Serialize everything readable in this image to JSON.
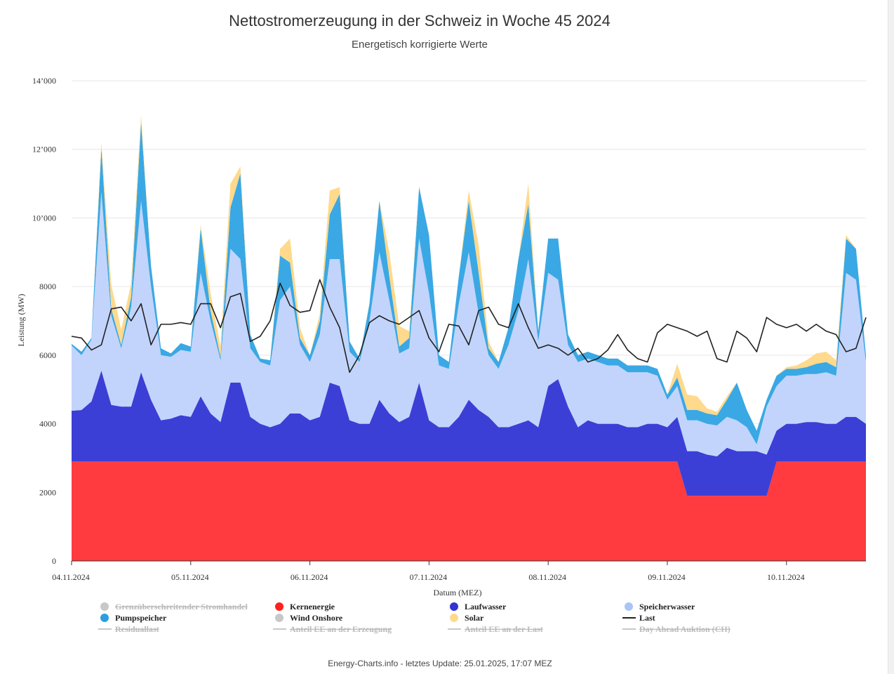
{
  "title": "Nettostromerzeugung in der Schweiz in Woche 45 2024",
  "subtitle": "Energetisch korrigierte Werte",
  "credits": "Energy-Charts.info - letztes Update: 25.01.2025, 17:07 MEZ",
  "chart_data": {
    "type": "area",
    "title": "Nettostromerzeugung in der Schweiz in Woche 45 2024",
    "subtitle": "Energetisch korrigierte Werte",
    "xlabel": "Datum (MEZ)",
    "ylabel": "Leistung (MW)",
    "ylim": [
      0,
      14000
    ],
    "yticks": [
      0,
      2000,
      4000,
      6000,
      8000,
      10000,
      12000,
      14000
    ],
    "ytick_labels": [
      "0",
      "2000",
      "4000",
      "6000",
      "8000",
      "10’000",
      "12’000",
      "14’000"
    ],
    "xlim_hours": [
      0,
      160
    ],
    "x_ticks": [
      {
        "hour": 0,
        "label": "04.11.2024"
      },
      {
        "hour": 24,
        "label": "05.11.2024"
      },
      {
        "hour": 48,
        "label": "06.11.2024"
      },
      {
        "hour": 72,
        "label": "07.11.2024"
      },
      {
        "hour": 96,
        "label": "08.11.2024"
      },
      {
        "hour": 120,
        "label": "09.11.2024"
      },
      {
        "hour": 144,
        "label": "10.11.2024"
      }
    ],
    "grid": true,
    "legend_position": "bottom",
    "x_hours": [
      0,
      2,
      4,
      6,
      8,
      10,
      12,
      14,
      16,
      18,
      20,
      22,
      24,
      26,
      28,
      30,
      32,
      34,
      36,
      38,
      40,
      42,
      44,
      46,
      48,
      50,
      52,
      54,
      56,
      58,
      60,
      62,
      64,
      66,
      68,
      70,
      72,
      74,
      76,
      78,
      80,
      82,
      84,
      86,
      88,
      90,
      92,
      94,
      96,
      98,
      100,
      102,
      104,
      106,
      108,
      110,
      112,
      114,
      116,
      118,
      120,
      122,
      124,
      126,
      128,
      130,
      132,
      134,
      136,
      138,
      140,
      142,
      144,
      146,
      148,
      150,
      152,
      154,
      156,
      158,
      160
    ],
    "series": [
      {
        "name": "Kernenergie",
        "color": "#ff3b3f",
        "stacked": true,
        "values": [
          2900,
          2900,
          2900,
          2900,
          2900,
          2900,
          2900,
          2900,
          2900,
          2900,
          2900,
          2900,
          2900,
          2900,
          2900,
          2900,
          2900,
          2900,
          2900,
          2900,
          2900,
          2900,
          2900,
          2900,
          2900,
          2900,
          2900,
          2900,
          2900,
          2900,
          2900,
          2900,
          2900,
          2900,
          2900,
          2900,
          2900,
          2900,
          2900,
          2900,
          2900,
          2900,
          2900,
          2900,
          2900,
          2900,
          2900,
          2900,
          2900,
          2900,
          2900,
          2900,
          2900,
          2900,
          2900,
          2900,
          2900,
          2900,
          2900,
          2900,
          2900,
          2900,
          1900,
          1900,
          1900,
          1900,
          1900,
          1900,
          1900,
          1900,
          1900,
          2900,
          2900,
          2900,
          2900,
          2900,
          2900,
          2900,
          2900,
          2900,
          2900
        ]
      },
      {
        "name": "Laufwasser",
        "color": "#3b3fd6",
        "stacked": true,
        "values": [
          1480,
          1500,
          1750,
          2650,
          1650,
          1600,
          1600,
          2600,
          1800,
          1200,
          1250,
          1350,
          1300,
          1900,
          1400,
          1150,
          2300,
          2300,
          1300,
          1100,
          1000,
          1100,
          1400,
          1400,
          1200,
          1300,
          2300,
          2200,
          1200,
          1100,
          1100,
          1800,
          1400,
          1150,
          1300,
          2300,
          1200,
          1000,
          1000,
          1300,
          1800,
          1500,
          1300,
          1000,
          1000,
          1100,
          1200,
          1000,
          2200,
          2400,
          1600,
          1000,
          1200,
          1100,
          1100,
          1100,
          1000,
          1000,
          1100,
          1100,
          1000,
          1300,
          1300,
          1300,
          1200,
          1150,
          1400,
          1300,
          1300,
          1300,
          1200,
          900,
          1100,
          1100,
          1150,
          1150,
          1100,
          1100,
          1300,
          1300,
          1100
        ]
      },
      {
        "name": "Speicherwasser",
        "color": "#c2d4fb",
        "stacked": true,
        "values": [
          1900,
          1600,
          1800,
          5200,
          2600,
          1700,
          2900,
          5000,
          3300,
          1900,
          1800,
          1900,
          1900,
          3600,
          2700,
          1800,
          3900,
          3600,
          2000,
          1800,
          1800,
          3600,
          3700,
          2000,
          1700,
          2400,
          3600,
          3700,
          2000,
          1800,
          3000,
          4300,
          3300,
          2000,
          2000,
          4200,
          3700,
          1800,
          1700,
          3300,
          4300,
          2800,
          1800,
          1700,
          2400,
          3300,
          4700,
          2500,
          3300,
          2900,
          1800,
          1900,
          1800,
          1800,
          1700,
          1700,
          1600,
          1600,
          1500,
          1400,
          800,
          900,
          900,
          900,
          900,
          900,
          900,
          900,
          700,
          200,
          1400,
          1300,
          1400,
          1400,
          1400,
          1400,
          1500,
          1400,
          4200,
          4000,
          1800
        ]
      },
      {
        "name": "Pumpspeicher",
        "color": "#3aa8e4",
        "stacked": true,
        "values": [
          50,
          100,
          50,
          1300,
          200,
          100,
          300,
          2300,
          600,
          200,
          100,
          200,
          150,
          1300,
          300,
          100,
          1200,
          2500,
          400,
          100,
          150,
          1300,
          700,
          200,
          200,
          400,
          1300,
          1900,
          300,
          100,
          500,
          1500,
          700,
          200,
          300,
          1500,
          1700,
          300,
          200,
          800,
          1500,
          1200,
          200,
          200,
          500,
          1500,
          1600,
          300,
          1000,
          1200,
          300,
          200,
          200,
          200,
          200,
          200,
          200,
          200,
          200,
          200,
          150,
          250,
          300,
          300,
          300,
          300,
          500,
          1100,
          500,
          400,
          200,
          300,
          200,
          200,
          200,
          300,
          300,
          250,
          1000,
          900,
          200
        ]
      },
      {
        "name": "Solar",
        "color": "#ffd98c",
        "stacked": true,
        "values": [
          0,
          0,
          0,
          150,
          700,
          450,
          400,
          200,
          0,
          0,
          0,
          0,
          0,
          100,
          500,
          300,
          700,
          200,
          0,
          0,
          0,
          200,
          700,
          300,
          0,
          200,
          700,
          200,
          0,
          0,
          0,
          0,
          700,
          600,
          200,
          0,
          0,
          0,
          0,
          0,
          300,
          800,
          200,
          0,
          0,
          0,
          600,
          0,
          0,
          0,
          0,
          0,
          0,
          0,
          0,
          0,
          0,
          0,
          0,
          0,
          0,
          400,
          450,
          400,
          150,
          100,
          100,
          0,
          0,
          0,
          0,
          0,
          50,
          100,
          200,
          300,
          300,
          200,
          100,
          0,
          0
        ]
      },
      {
        "name": "Last",
        "color": "#222222",
        "line": true,
        "values": [
          6550,
          6500,
          6150,
          6300,
          7350,
          7400,
          7000,
          7500,
          6300,
          6900,
          6900,
          6950,
          6900,
          7500,
          7500,
          6800,
          7700,
          7800,
          6400,
          6550,
          7000,
          8100,
          7450,
          7250,
          7300,
          8200,
          7400,
          6800,
          5500,
          6000,
          6950,
          7150,
          7000,
          6900,
          7100,
          7300,
          6500,
          6100,
          6900,
          6850,
          6300,
          7300,
          7400,
          6900,
          6800,
          7500,
          6800,
          6200,
          6300,
          6200,
          6000,
          6200,
          5800,
          5900,
          6150,
          6600,
          6150,
          5900,
          5800,
          6650,
          6900,
          6800,
          6700,
          6550,
          6700,
          5900,
          5800,
          6700,
          6500,
          6100,
          7100,
          6900,
          6800,
          6900,
          6700,
          6900,
          6700,
          6600,
          6100,
          6200,
          7100
        ]
      },
      {
        "name": "Grenzüberschreitender Stromhandel",
        "color": "#c8c8c8",
        "hidden": true,
        "values": []
      },
      {
        "name": "Wind Onshore",
        "color": "#c8c8c8",
        "values": [
          0,
          0,
          0,
          0,
          0,
          0,
          0,
          0,
          0,
          0,
          0,
          0,
          0,
          0,
          0,
          0,
          0,
          0,
          0,
          0,
          0,
          0,
          0,
          0,
          0,
          0,
          0,
          0,
          0,
          0,
          0,
          0,
          0,
          0,
          0,
          0,
          0,
          0,
          0,
          0,
          0,
          0,
          0,
          0,
          0,
          0,
          0,
          0,
          0,
          0,
          0,
          0,
          0,
          0,
          0,
          0,
          0,
          0,
          0,
          0,
          0,
          0,
          0,
          0,
          0,
          0,
          0,
          0,
          0,
          0,
          0,
          0,
          0,
          0,
          0,
          0,
          0,
          0,
          0,
          0,
          0
        ]
      },
      {
        "name": "Residuallast",
        "color": "#c8c8c8",
        "hidden": true,
        "values": []
      },
      {
        "name": "Anteil EE an der Erzeugung",
        "color": "#c8c8c8",
        "hidden": true,
        "values": []
      },
      {
        "name": "Anteil EE an der Last",
        "color": "#c8c8c8",
        "hidden": true,
        "values": []
      },
      {
        "name": "Day Ahead Auktion (CH)",
        "color": "#c8c8c8",
        "hidden": true,
        "values": []
      }
    ]
  },
  "legend": [
    {
      "label": "Grenzüberschreitender Stromhandel",
      "symbol": "circle",
      "color": "#c8c8c8",
      "hidden": true
    },
    {
      "label": "Kernenergie",
      "symbol": "circle",
      "color": "#ff2020",
      "hidden": false
    },
    {
      "label": "Laufwasser",
      "symbol": "circle",
      "color": "#3434d0",
      "hidden": false
    },
    {
      "label": "Speicherwasser",
      "symbol": "circle",
      "color": "#a9c5f7",
      "hidden": false
    },
    {
      "label": "Pumpspeicher",
      "symbol": "circle",
      "color": "#2b9ee0",
      "hidden": false
    },
    {
      "label": "Wind Onshore",
      "symbol": "circle",
      "color": "#c8c8c8",
      "hidden": false
    },
    {
      "label": "Solar",
      "symbol": "circle",
      "color": "#ffd98c",
      "hidden": false
    },
    {
      "label": "Last",
      "symbol": "line",
      "color": "#222222",
      "hidden": false
    },
    {
      "label": "Residuallast",
      "symbol": "line",
      "color": "#c8c8c8",
      "hidden": true
    },
    {
      "label": "Anteil EE an der Erzeugung",
      "symbol": "line",
      "color": "#c8c8c8",
      "hidden": true
    },
    {
      "label": "Anteil EE an der Last",
      "symbol": "line",
      "color": "#c8c8c8",
      "hidden": true
    },
    {
      "label": "Day Ahead Auktion (CH)",
      "symbol": "line",
      "color": "#c8c8c8",
      "hidden": true
    }
  ]
}
